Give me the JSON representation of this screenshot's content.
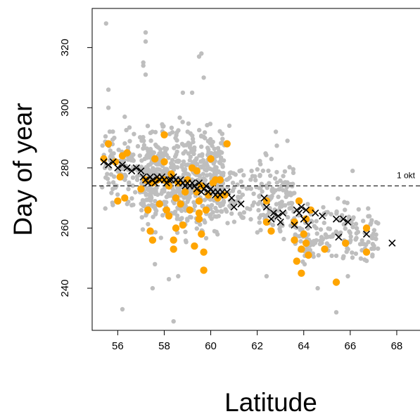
{
  "chart_data": {
    "type": "scatter",
    "xlabel": "Latitude",
    "ylabel": "Day of year",
    "xlim": [
      54.9,
      69.0
    ],
    "ylim": [
      226,
      333
    ],
    "x_ticks": [
      56,
      58,
      60,
      62,
      64,
      66,
      68
    ],
    "y_ticks": [
      240,
      260,
      280,
      300,
      320
    ],
    "reference_line": {
      "y": 274,
      "label": "1 okt",
      "style": "dashed"
    },
    "colors": {
      "background": "#bebebe",
      "highlight": "#ffa500",
      "mean": "#000000"
    },
    "background_points": {
      "clusters": [
        {
          "x": [
            55.3,
            57.0
          ],
          "y": [
            262,
            298
          ],
          "n": 110
        },
        {
          "x": [
            57.0,
            60.6
          ],
          "y": [
            252,
            300
          ],
          "n": 620
        },
        {
          "x": [
            60.6,
            62.0
          ],
          "y": [
            256,
            286
          ],
          "n": 60
        },
        {
          "x": [
            62.0,
            63.6
          ],
          "y": [
            250,
            290
          ],
          "n": 120
        },
        {
          "x": [
            63.6,
            67.2
          ],
          "y": [
            244,
            272
          ],
          "n": 160
        }
      ],
      "outliers": [
        [
          55.5,
          328
        ],
        [
          57.2,
          325
        ],
        [
          57.2,
          322
        ],
        [
          57.1,
          315
        ],
        [
          57.1,
          314
        ],
        [
          57.2,
          311
        ],
        [
          59.5,
          317
        ],
        [
          59.6,
          318
        ],
        [
          59.7,
          310
        ],
        [
          55.6,
          306
        ],
        [
          55.6,
          300
        ],
        [
          56.3,
          297
        ],
        [
          58.8,
          305
        ],
        [
          59.2,
          305
        ],
        [
          58.4,
          229
        ],
        [
          56.2,
          233
        ],
        [
          57.5,
          240
        ],
        [
          58.2,
          243
        ],
        [
          65.4,
          232
        ],
        [
          64.6,
          240
        ],
        [
          66.1,
          279
        ],
        [
          63.3,
          289
        ],
        [
          62.8,
          292
        ],
        [
          60.8,
          294
        ],
        [
          57.6,
          248
        ],
        [
          58.6,
          244
        ],
        [
          62.4,
          244
        ],
        [
          65.9,
          244
        ]
      ]
    },
    "highlight_points": [
      [
        55.4,
        283
      ],
      [
        55.6,
        288
      ],
      [
        55.9,
        282
      ],
      [
        56.1,
        277
      ],
      [
        56.2,
        284
      ],
      [
        56.4,
        285
      ],
      [
        56.0,
        269
      ],
      [
        56.3,
        270
      ],
      [
        57.0,
        273
      ],
      [
        57.2,
        276
      ],
      [
        57.3,
        266
      ],
      [
        57.4,
        259
      ],
      [
        57.5,
        256
      ],
      [
        57.5,
        275
      ],
      [
        57.6,
        283
      ],
      [
        57.7,
        276
      ],
      [
        57.8,
        268
      ],
      [
        58.0,
        291
      ],
      [
        58.0,
        282
      ],
      [
        58.0,
        276
      ],
      [
        58.1,
        266
      ],
      [
        58.2,
        274
      ],
      [
        58.3,
        278
      ],
      [
        58.4,
        253
      ],
      [
        58.4,
        256
      ],
      [
        58.5,
        260
      ],
      [
        58.5,
        270
      ],
      [
        58.6,
        275
      ],
      [
        58.7,
        268
      ],
      [
        58.8,
        261
      ],
      [
        58.9,
        272
      ],
      [
        59.0,
        276
      ],
      [
        59.1,
        266
      ],
      [
        59.2,
        280
      ],
      [
        59.3,
        254
      ],
      [
        59.4,
        272
      ],
      [
        59.4,
        279
      ],
      [
        59.5,
        263
      ],
      [
        59.5,
        269
      ],
      [
        59.6,
        258
      ],
      [
        59.6,
        274
      ],
      [
        59.7,
        246
      ],
      [
        59.7,
        252
      ],
      [
        59.8,
        266
      ],
      [
        59.9,
        271
      ],
      [
        60.0,
        283
      ],
      [
        60.1,
        275
      ],
      [
        60.2,
        276
      ],
      [
        60.3,
        270
      ],
      [
        60.4,
        276
      ],
      [
        60.6,
        271
      ],
      [
        60.7,
        288
      ],
      [
        59.5,
        265
      ],
      [
        58.2,
        264
      ],
      [
        62.4,
        269
      ],
      [
        62.4,
        262
      ],
      [
        62.6,
        259
      ],
      [
        63.6,
        256
      ],
      [
        63.6,
        262
      ],
      [
        63.7,
        249
      ],
      [
        63.8,
        269
      ],
      [
        63.9,
        245
      ],
      [
        63.9,
        253
      ],
      [
        64.0,
        258
      ],
      [
        64.1,
        263
      ],
      [
        64.1,
        255
      ],
      [
        64.2,
        251
      ],
      [
        64.3,
        266
      ],
      [
        64.9,
        253
      ],
      [
        65.4,
        242
      ],
      [
        65.8,
        255
      ],
      [
        66.7,
        252
      ],
      [
        66.7,
        260
      ]
    ],
    "mean_points": [
      [
        55.4,
        282
      ],
      [
        55.6,
        281
      ],
      [
        55.8,
        282
      ],
      [
        56.0,
        280
      ],
      [
        56.2,
        281
      ],
      [
        56.4,
        280
      ],
      [
        56.6,
        279
      ],
      [
        56.8,
        280
      ],
      [
        57.0,
        279
      ],
      [
        57.1,
        277
      ],
      [
        57.2,
        276
      ],
      [
        57.3,
        275
      ],
      [
        57.4,
        277
      ],
      [
        57.5,
        276
      ],
      [
        57.6,
        275
      ],
      [
        57.7,
        277
      ],
      [
        57.8,
        276
      ],
      [
        57.9,
        277
      ],
      [
        58.0,
        276
      ],
      [
        58.1,
        275
      ],
      [
        58.2,
        276
      ],
      [
        58.3,
        276
      ],
      [
        58.4,
        277
      ],
      [
        58.5,
        276
      ],
      [
        58.6,
        275
      ],
      [
        58.7,
        276
      ],
      [
        58.8,
        275
      ],
      [
        58.9,
        274
      ],
      [
        59.0,
        275
      ],
      [
        59.1,
        274
      ],
      [
        59.2,
        275
      ],
      [
        59.3,
        274
      ],
      [
        59.4,
        273
      ],
      [
        59.5,
        275
      ],
      [
        59.6,
        272
      ],
      [
        59.7,
        273
      ],
      [
        59.8,
        274
      ],
      [
        59.9,
        272
      ],
      [
        60.0,
        273
      ],
      [
        60.1,
        272
      ],
      [
        60.2,
        271
      ],
      [
        60.3,
        272
      ],
      [
        60.4,
        271
      ],
      [
        60.5,
        272
      ],
      [
        60.7,
        272
      ],
      [
        60.9,
        270
      ],
      [
        61.0,
        267
      ],
      [
        61.3,
        268
      ],
      [
        62.3,
        270
      ],
      [
        62.4,
        267
      ],
      [
        62.6,
        263
      ],
      [
        62.7,
        265
      ],
      [
        62.9,
        264
      ],
      [
        63.0,
        262
      ],
      [
        63.1,
        265
      ],
      [
        63.6,
        261
      ],
      [
        63.7,
        266
      ],
      [
        63.8,
        265
      ],
      [
        63.9,
        267
      ],
      [
        64.0,
        263
      ],
      [
        64.1,
        266
      ],
      [
        64.2,
        261
      ],
      [
        64.5,
        265
      ],
      [
        64.8,
        264
      ],
      [
        65.4,
        263
      ],
      [
        65.5,
        257
      ],
      [
        65.7,
        263
      ],
      [
        65.9,
        262
      ],
      [
        66.7,
        258
      ],
      [
        67.8,
        255
      ]
    ]
  }
}
